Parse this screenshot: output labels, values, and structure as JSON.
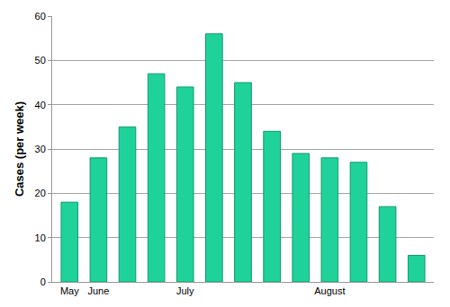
{
  "chart_data": {
    "type": "bar",
    "y_label": "Cases (per week)",
    "categories": [
      "May",
      "June",
      null,
      null,
      "July",
      null,
      null,
      null,
      null,
      "August",
      null,
      null,
      null
    ],
    "values": [
      18,
      28,
      35,
      47,
      44,
      56,
      45,
      34,
      29,
      28,
      27,
      17,
      6
    ],
    "color": "#1fd29a",
    "ylim": [
      0,
      60
    ],
    "yticks": [
      0,
      10,
      20,
      30,
      40,
      50,
      60
    ],
    "grid": true
  }
}
